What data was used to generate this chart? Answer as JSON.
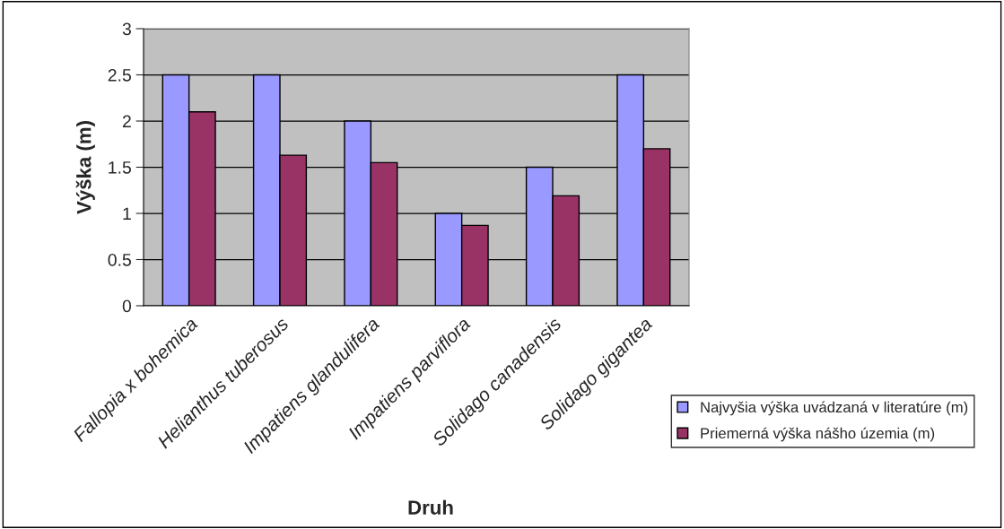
{
  "chart_data": {
    "type": "bar",
    "xlabel": "Druh",
    "ylabel": "Výška (m)",
    "categories": [
      "Fallopia x bohemica",
      "Helianthus tuberosus",
      "Impatiens glandulifera",
      "Impatiens parviflora",
      "Solidago canadensis",
      "Solidago gigantea"
    ],
    "series": [
      {
        "name": "Najvyšia výška uvádzaná v literatúre (m)",
        "color": "#9999ff",
        "values": [
          2.5,
          2.5,
          2.0,
          1.0,
          1.5,
          2.5
        ]
      },
      {
        "name": "Priemerná výška nášho územia (m)",
        "color": "#993366",
        "values": [
          2.1,
          1.63,
          1.55,
          0.87,
          1.19,
          1.7
        ]
      }
    ],
    "ylim": [
      0,
      3
    ],
    "yticks": [
      0,
      0.5,
      1,
      1.5,
      2,
      2.5,
      3
    ],
    "grid": "y",
    "legend": "right"
  }
}
